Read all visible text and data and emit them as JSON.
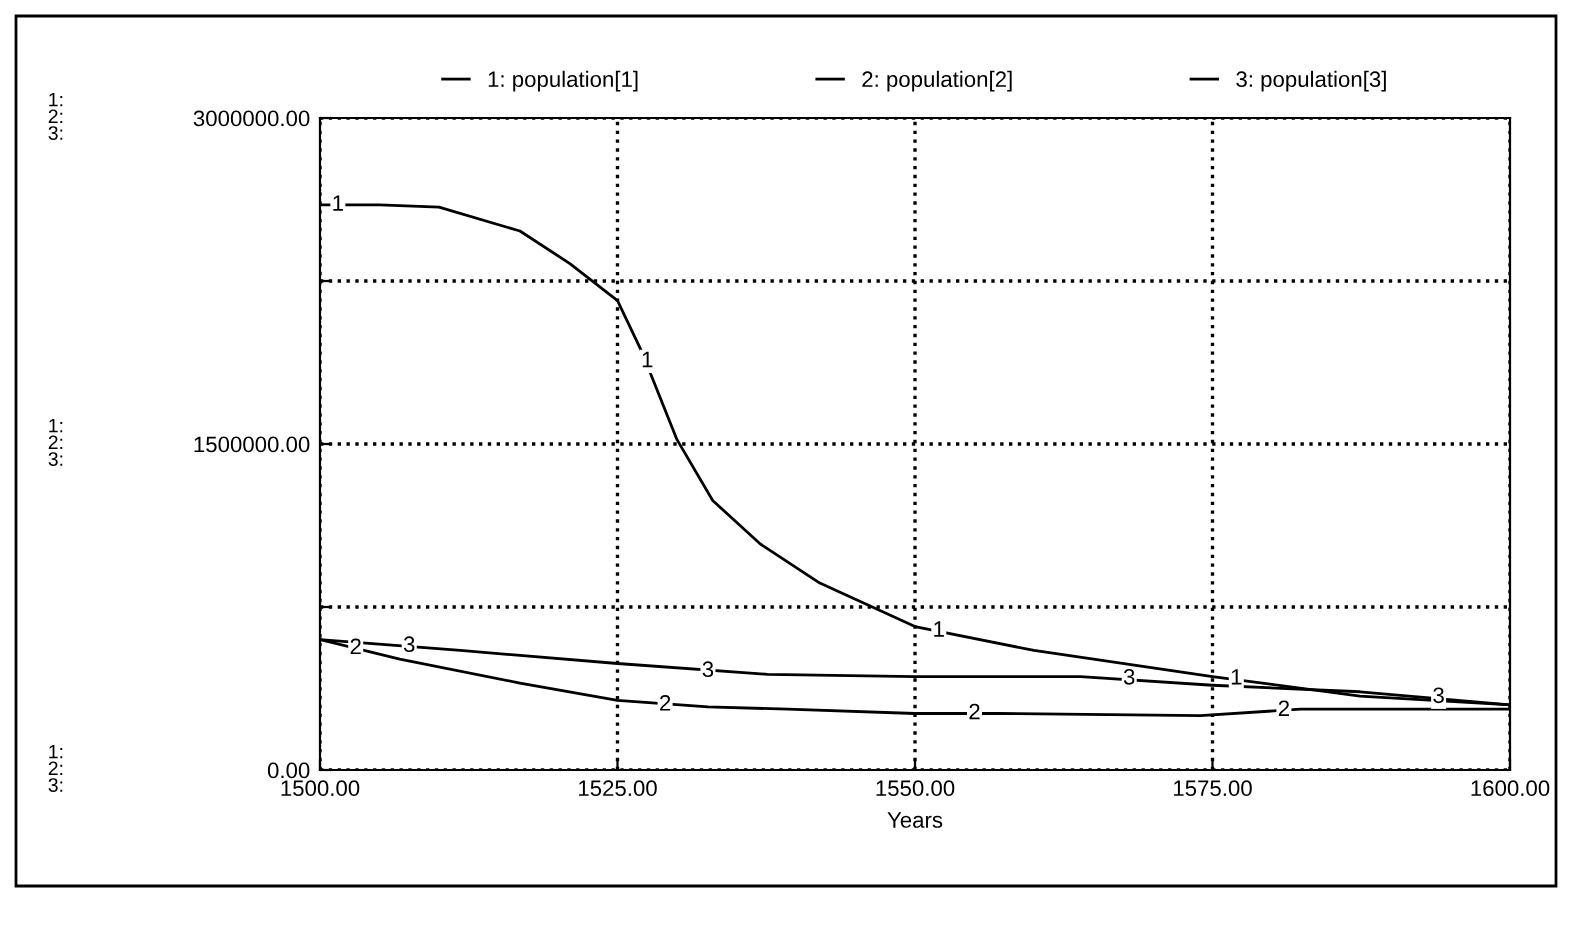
{
  "chart_data": {
    "type": "line",
    "xlabel": "Years",
    "series": [
      {
        "name": "1: population[1]",
        "color": "#000000",
        "x": [
          1500,
          1505,
          1510,
          1516.8,
          1521,
          1525,
          1527,
          1530,
          1533,
          1537,
          1542,
          1550,
          1560,
          1575,
          1587.4,
          1600
        ],
        "values": [
          2600000,
          2600000,
          2590000,
          2480000,
          2330000,
          2160000,
          1930000,
          1520000,
          1240000,
          1040000,
          860000,
          660000,
          550000,
          430000,
          340000,
          300000
        ]
      },
      {
        "name": "2: population[2]",
        "color": "#000000",
        "x": [
          1500,
          1506.7,
          1516.8,
          1525,
          1532.6,
          1539.3,
          1550,
          1557,
          1574,
          1582.4,
          1600
        ],
        "values": [
          600000,
          510000,
          400000,
          320000,
          290000,
          280000,
          260000,
          260000,
          250000,
          280000,
          280000
        ]
      },
      {
        "name": "3: population[3]",
        "color": "#000000",
        "x": [
          1500,
          1511.8,
          1525,
          1537.6,
          1550,
          1563.9,
          1575,
          1587.4,
          1600
        ],
        "values": [
          600000,
          550000,
          490000,
          440000,
          430000,
          430000,
          390000,
          360000,
          300000
        ]
      }
    ],
    "xlim": [
      1500,
      1600
    ],
    "xticks": [
      {
        "value": 1500,
        "label": "1500.00"
      },
      {
        "value": 1525,
        "label": "1525.00"
      },
      {
        "value": 1550,
        "label": "1550.00"
      },
      {
        "value": 1575,
        "label": "1575.00"
      },
      {
        "value": 1600,
        "label": "1600.00"
      }
    ],
    "ylim": [
      0,
      3000000
    ],
    "yticks": [
      {
        "value": 0,
        "label": "0.00"
      },
      {
        "value": 750000,
        "label": null
      },
      {
        "value": 1500000,
        "label": "1500000.00"
      },
      {
        "value": 2250000,
        "label": null
      },
      {
        "value": 3000000,
        "label": "3000000.00"
      }
    ],
    "grid": true,
    "line_style": "solid",
    "marker": "none",
    "legend": "top",
    "annotations": [
      "1:\n2:\n3:",
      "1:\n2:\n3:",
      "1:\n2:\n3:",
      {
        "text": "1",
        "x": 1501.5,
        "y": 2600000
      },
      {
        "text": "1",
        "x": 1527.5,
        "y": 1880000
      },
      {
        "text": "1",
        "x": 1552,
        "y": 640000
      },
      {
        "text": "1",
        "x": 1577,
        "y": 420000
      },
      {
        "text": "2",
        "x": 1503,
        "y": 560000
      },
      {
        "text": "2",
        "x": 1529,
        "y": 300000
      },
      {
        "text": "2",
        "x": 1555,
        "y": 260000
      },
      {
        "text": "2",
        "x": 1581,
        "y": 275000
      },
      {
        "text": "3",
        "x": 1507.5,
        "y": 570000
      },
      {
        "text": "3",
        "x": 1532.6,
        "y": 455000
      },
      {
        "text": "3",
        "x": 1568,
        "y": 420000
      },
      {
        "text": "3",
        "x": 1594,
        "y": 335000
      }
    ]
  }
}
